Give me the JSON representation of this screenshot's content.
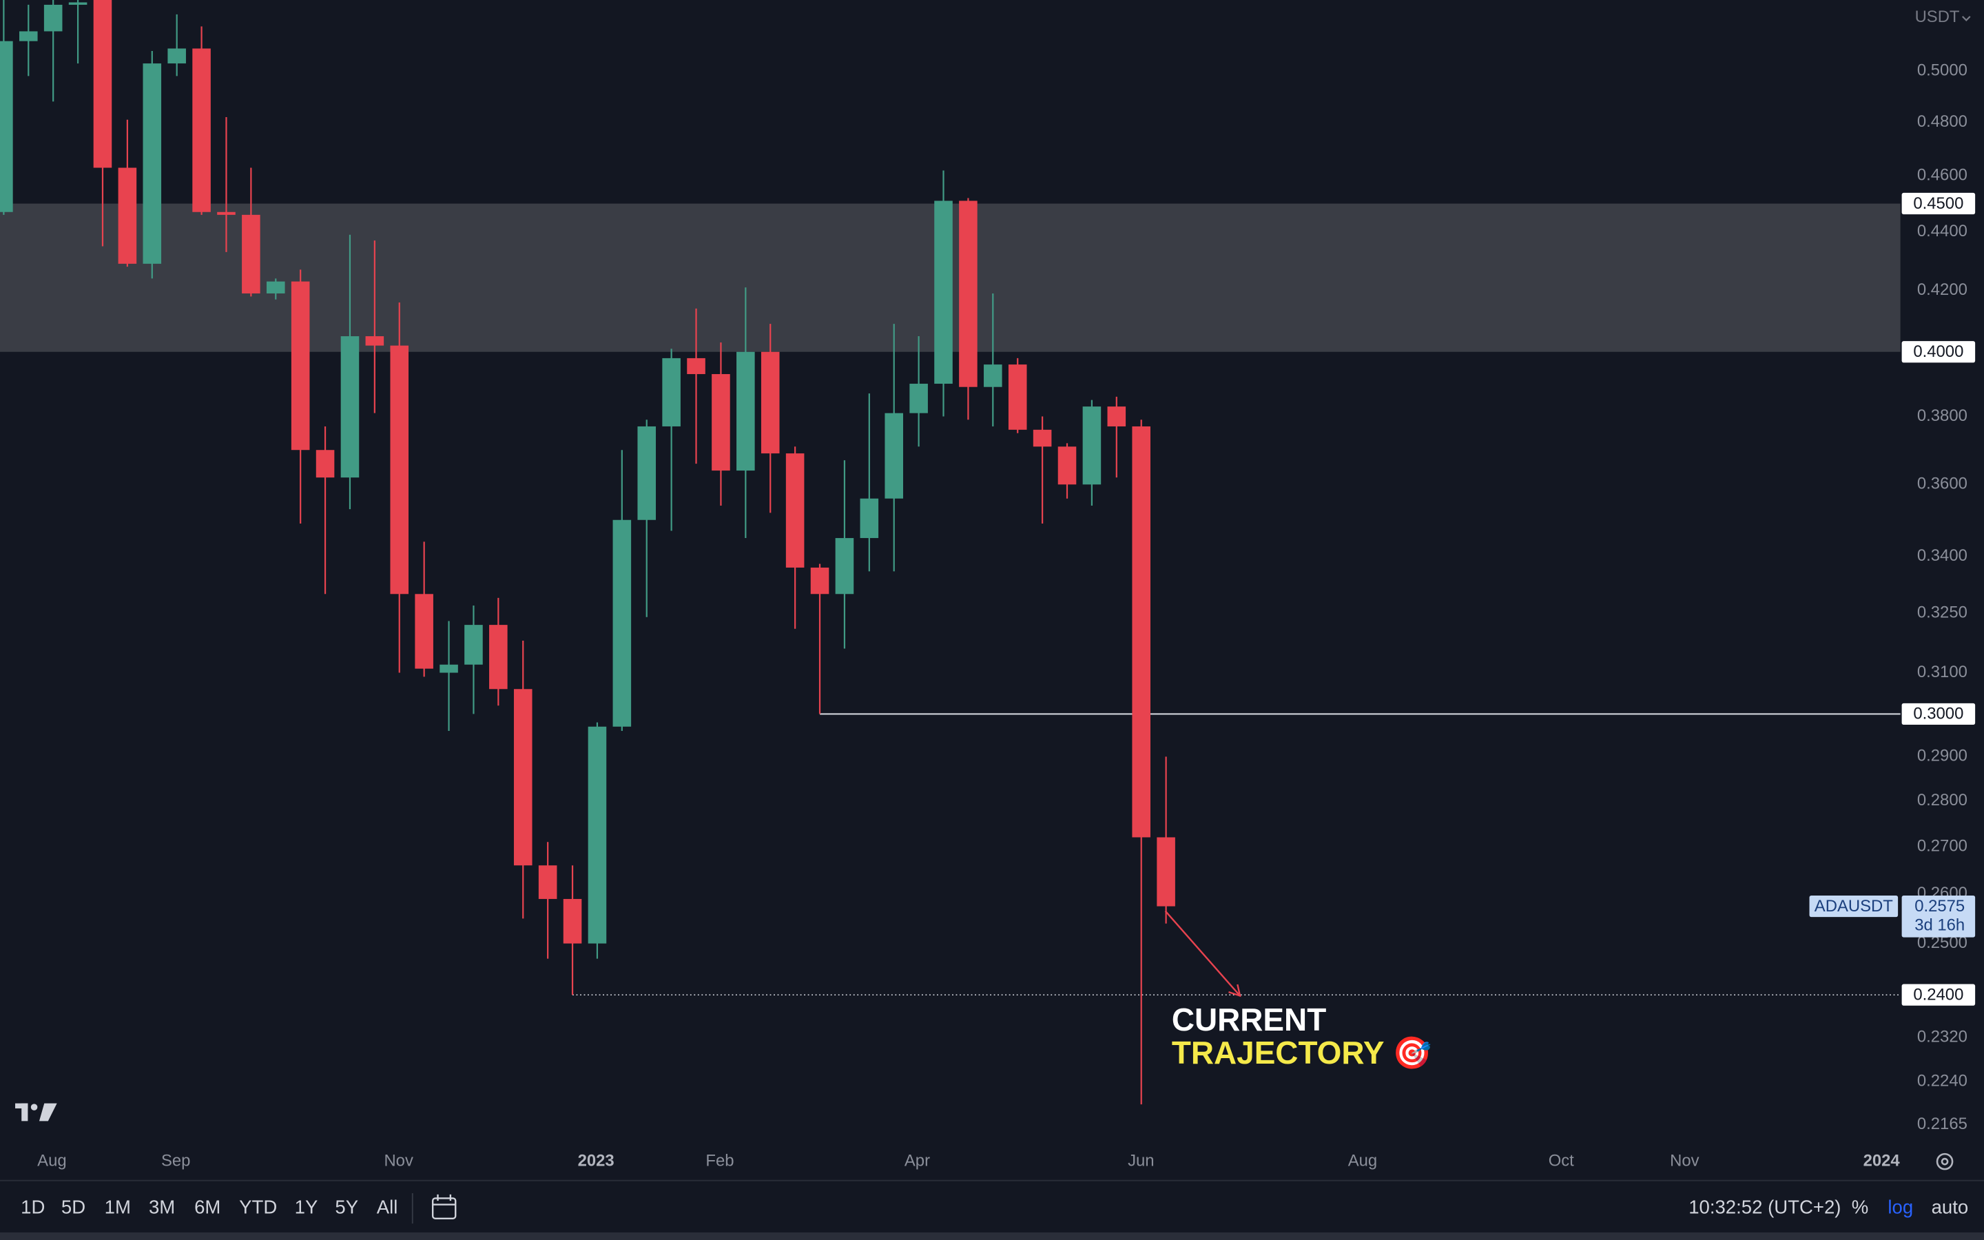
{
  "chart_data": {
    "type": "candlestick",
    "currency": "USDT",
    "log_scale": true,
    "up_color": "#419b85",
    "down_color": "#e8434f",
    "categories": [
      null,
      null,
      null,
      null,
      null,
      null,
      null,
      null,
      null,
      null,
      null,
      null,
      null,
      null,
      null,
      null,
      null,
      null,
      null,
      null,
      null,
      null,
      null,
      null,
      null,
      null,
      null,
      null,
      null,
      null,
      null,
      null,
      null,
      null,
      null,
      null,
      null,
      null,
      null,
      null,
      null,
      null,
      null,
      null,
      null,
      null,
      null,
      null
    ],
    "open": [
      0.447,
      0.512,
      0.516,
      0.527,
      0.529,
      0.463,
      0.429,
      0.503,
      0.509,
      0.447,
      0.446,
      0.419,
      0.423,
      0.37,
      0.362,
      0.405,
      0.402,
      0.33,
      0.31,
      0.312,
      0.322,
      0.306,
      0.266,
      0.259,
      0.25,
      0.297,
      0.35,
      0.377,
      0.398,
      0.393,
      0.364,
      0.4,
      0.369,
      0.337,
      0.33,
      0.345,
      0.356,
      0.381,
      0.39,
      0.451,
      0.389,
      0.396,
      0.376,
      0.371,
      0.36,
      0.383,
      0.377,
      0.272
    ],
    "high": [
      0.529,
      0.527,
      0.529,
      0.529,
      0.529,
      0.481,
      0.508,
      0.523,
      0.518,
      0.482,
      0.463,
      0.424,
      0.427,
      0.377,
      0.439,
      0.437,
      0.416,
      0.344,
      0.323,
      0.327,
      0.329,
      0.318,
      0.271,
      0.266,
      0.298,
      0.37,
      0.379,
      0.401,
      0.414,
      0.403,
      0.421,
      0.409,
      0.371,
      0.338,
      0.367,
      0.387,
      0.409,
      0.405,
      0.462,
      0.452,
      0.419,
      0.398,
      0.38,
      0.372,
      0.385,
      0.386,
      0.379,
      0.29
    ],
    "low": [
      0.446,
      0.498,
      0.488,
      0.503,
      0.435,
      0.428,
      0.424,
      0.498,
      0.446,
      0.433,
      0.418,
      0.417,
      0.349,
      0.33,
      0.353,
      0.381,
      0.31,
      0.309,
      0.296,
      0.3,
      0.302,
      0.255,
      0.247,
      0.24,
      0.247,
      0.296,
      0.324,
      0.347,
      0.366,
      0.354,
      0.345,
      0.352,
      0.321,
      0.3,
      0.316,
      0.336,
      0.336,
      0.371,
      0.38,
      0.379,
      0.377,
      0.375,
      0.349,
      0.356,
      0.354,
      0.362,
      0.22,
      0.254
    ],
    "close": [
      0.512,
      0.516,
      0.527,
      0.528,
      0.463,
      0.429,
      0.503,
      0.509,
      0.447,
      0.446,
      0.419,
      0.423,
      0.37,
      0.362,
      0.405,
      0.402,
      0.33,
      0.311,
      0.312,
      0.322,
      0.306,
      0.266,
      0.259,
      0.25,
      0.297,
      0.35,
      0.377,
      0.398,
      0.393,
      0.364,
      0.4,
      0.369,
      0.337,
      0.33,
      0.345,
      0.356,
      0.381,
      0.39,
      0.451,
      0.389,
      0.396,
      0.376,
      0.371,
      0.36,
      0.383,
      0.377,
      0.272,
      0.2575
    ],
    "xlim": [
      -0.15,
      76.7
    ],
    "xticks": [
      {
        "value": 1.95,
        "label": "Aug"
      },
      {
        "value": 6.96,
        "label": "Sep"
      },
      {
        "value": 15.97,
        "label": "Nov"
      },
      {
        "value": 23.95,
        "label": "2023"
      },
      {
        "value": 28.96,
        "label": "Feb"
      },
      {
        "value": 36.94,
        "label": "Apr"
      },
      {
        "value": 45.99,
        "label": "Jun"
      },
      {
        "value": 54.95,
        "label": "Aug"
      },
      {
        "value": 62.98,
        "label": "Oct"
      },
      {
        "value": 67.97,
        "label": "Nov"
      },
      {
        "value": 75.93,
        "label": "2024"
      }
    ],
    "ylim": [
      0.213,
      0.529
    ],
    "yticks": [
      {
        "value": 0.5,
        "label": "0.5000"
      },
      {
        "value": 0.48,
        "label": "0.4800"
      },
      {
        "value": 0.46,
        "label": "0.4600"
      },
      {
        "value": 0.44,
        "label": "0.4400"
      },
      {
        "value": 0.42,
        "label": "0.4200"
      },
      {
        "value": 0.38,
        "label": "0.3800"
      },
      {
        "value": 0.36,
        "label": "0.3600"
      },
      {
        "value": 0.34,
        "label": "0.3400"
      },
      {
        "value": 0.325,
        "label": "0.3250"
      },
      {
        "value": 0.31,
        "label": "0.3100"
      },
      {
        "value": 0.29,
        "label": "0.2900"
      },
      {
        "value": 0.28,
        "label": "0.2800"
      },
      {
        "value": 0.27,
        "label": "0.2700"
      },
      {
        "value": 0.26,
        "label": "0.2600"
      },
      {
        "value": 0.25,
        "label": "0.2500"
      },
      {
        "value": 0.232,
        "label": "0.2320"
      },
      {
        "value": 0.224,
        "label": "0.2240"
      },
      {
        "value": 0.2165,
        "label": "0.2165"
      }
    ],
    "zone": {
      "from": {
        "value": 0.4,
        "label": "0.4000"
      },
      "to": {
        "value": 0.45,
        "label": "0.4500"
      }
    },
    "levels": [
      {
        "value": 0.3,
        "label": "0.3000",
        "from_x": 33,
        "style": "solid"
      },
      {
        "value": 0.24,
        "label": "0.2400",
        "from_x": 23,
        "style": "dotted"
      }
    ],
    "symbol": "ADAUSDT",
    "last_price": {
      "value": 0.2575,
      "label": "0.2575"
    },
    "countdown": "3d 16h",
    "annotation": [
      "CURRENT",
      "TRAJECTORY 🎯"
    ]
  },
  "toolbar": {
    "ranges": [
      "1D",
      "5D",
      "1M",
      "3M",
      "6M",
      "YTD",
      "1Y",
      "5Y",
      "All"
    ],
    "time": "10:32:52 (UTC+2)",
    "scale_options": [
      "%",
      "log",
      "auto"
    ]
  }
}
